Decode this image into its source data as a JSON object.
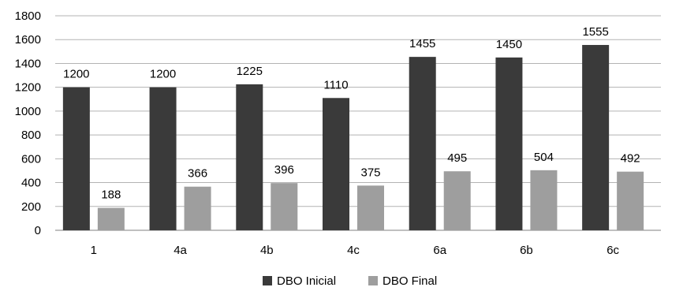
{
  "chart_data": {
    "type": "bar",
    "title": "",
    "xlabel": "",
    "ylabel": "",
    "categories": [
      "1",
      "4a",
      "4b",
      "4c",
      "6a",
      "6b",
      "6c"
    ],
    "series": [
      {
        "name": "DBO Inicial",
        "color": "#3a3a3a",
        "values": [
          1200,
          1200,
          1225,
          1110,
          1455,
          1450,
          1555
        ]
      },
      {
        "name": "DBO Final",
        "color": "#9e9e9e",
        "values": [
          188,
          366,
          396,
          375,
          495,
          504,
          492
        ]
      }
    ],
    "ylim": [
      0,
      1800
    ],
    "yticks": [
      0,
      200,
      400,
      600,
      800,
      1000,
      1200,
      1400,
      1600,
      1800
    ],
    "grid": true,
    "legend_position": "bottom-center"
  }
}
